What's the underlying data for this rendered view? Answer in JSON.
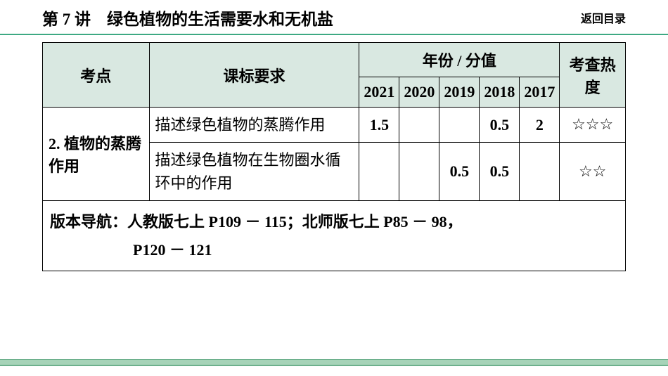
{
  "header": {
    "title": "第 7 讲　绿色植物的生活需要水和无机盐",
    "return_label": "返回目录"
  },
  "table": {
    "headers": {
      "col1": "考点",
      "col2": "课标要求",
      "col_year_group": "年份 / 分值",
      "years": [
        "2021",
        "2020",
        "2019",
        "2018",
        "2017"
      ],
      "col_heat": "考查热度"
    },
    "topic": {
      "label": "2. 植物的蒸腾作用",
      "rows": [
        {
          "desc": "描述绿色植物的蒸腾作用",
          "values": [
            "1.5",
            "",
            "",
            "0.5",
            "2"
          ],
          "heat": "☆☆☆"
        },
        {
          "desc": "描述绿色植物在生物圈水循环中的作用",
          "values": [
            "",
            "",
            "0.5",
            "0.5",
            ""
          ],
          "heat": "☆☆"
        }
      ]
    },
    "version_nav": {
      "line1": "版本导航：人教版七上 P109 － 115；北师版七上 P85 － 98，",
      "line2": "P120 － 121"
    }
  },
  "colors": {
    "header_bg": "#d9e8e1",
    "accent": "#3ea983",
    "footer_bar": "#a6d3b8",
    "footer_border": "#6db08c",
    "text": "#000000",
    "page_bg": "#ffffff"
  }
}
